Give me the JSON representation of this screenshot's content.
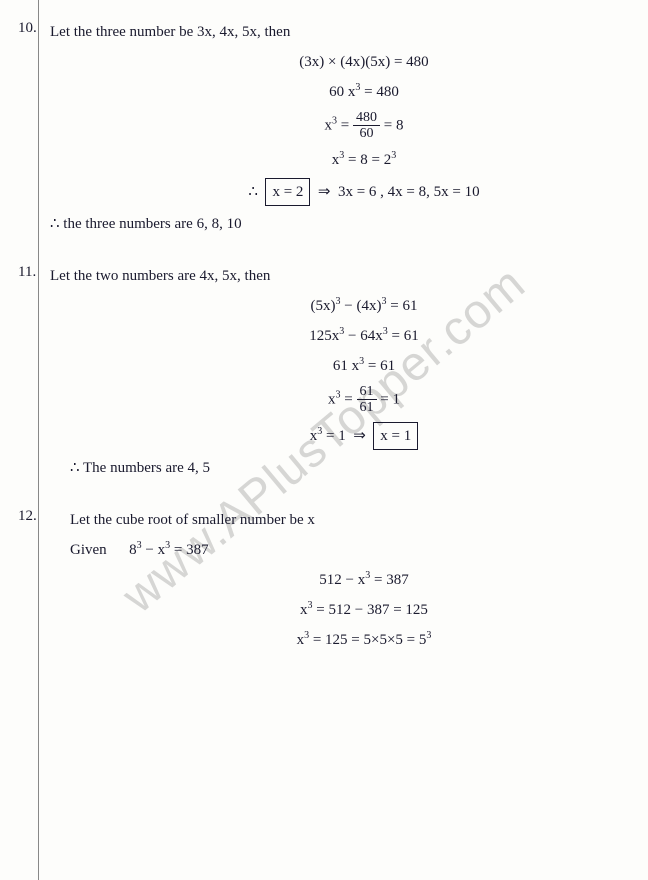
{
  "watermark": "www.APlusTopper.com",
  "problems": [
    {
      "num": "10.",
      "intro": "Let the three number be 3x, 4x, 5x, then",
      "steps": [
        "(3x) × (4x)(5x) = 480",
        "60 x³ = 480",
        "x³ = 480/60 = 8",
        "x³ = 8 = 2³",
        "∴ |x = 2| ⇒ 3x = 6 , 4x = 8, 5x = 10"
      ],
      "conclusion": "∴ the three numbers are 6, 8, 10"
    },
    {
      "num": "11.",
      "intro": "Let the two numbers are 4x, 5x, then",
      "steps": [
        "(5x)³ − (4x)³ = 61",
        "125x³ − 64x³ = 61",
        "61 x³ = 61",
        "x³ = 61/61 = 1",
        "x³ = 1 ⇒ |x = 1|"
      ],
      "conclusion": "∴ The numbers are 4, 5"
    },
    {
      "num": "12.",
      "intro": "Let the cube root of smaller number be x",
      "given": "Given",
      "steps": [
        "8³ − x³ = 387",
        "512 − x³ = 387",
        "x³ = 512 − 387 = 125",
        "x³ = 125 = 5×5×5 = 5³"
      ]
    }
  ]
}
